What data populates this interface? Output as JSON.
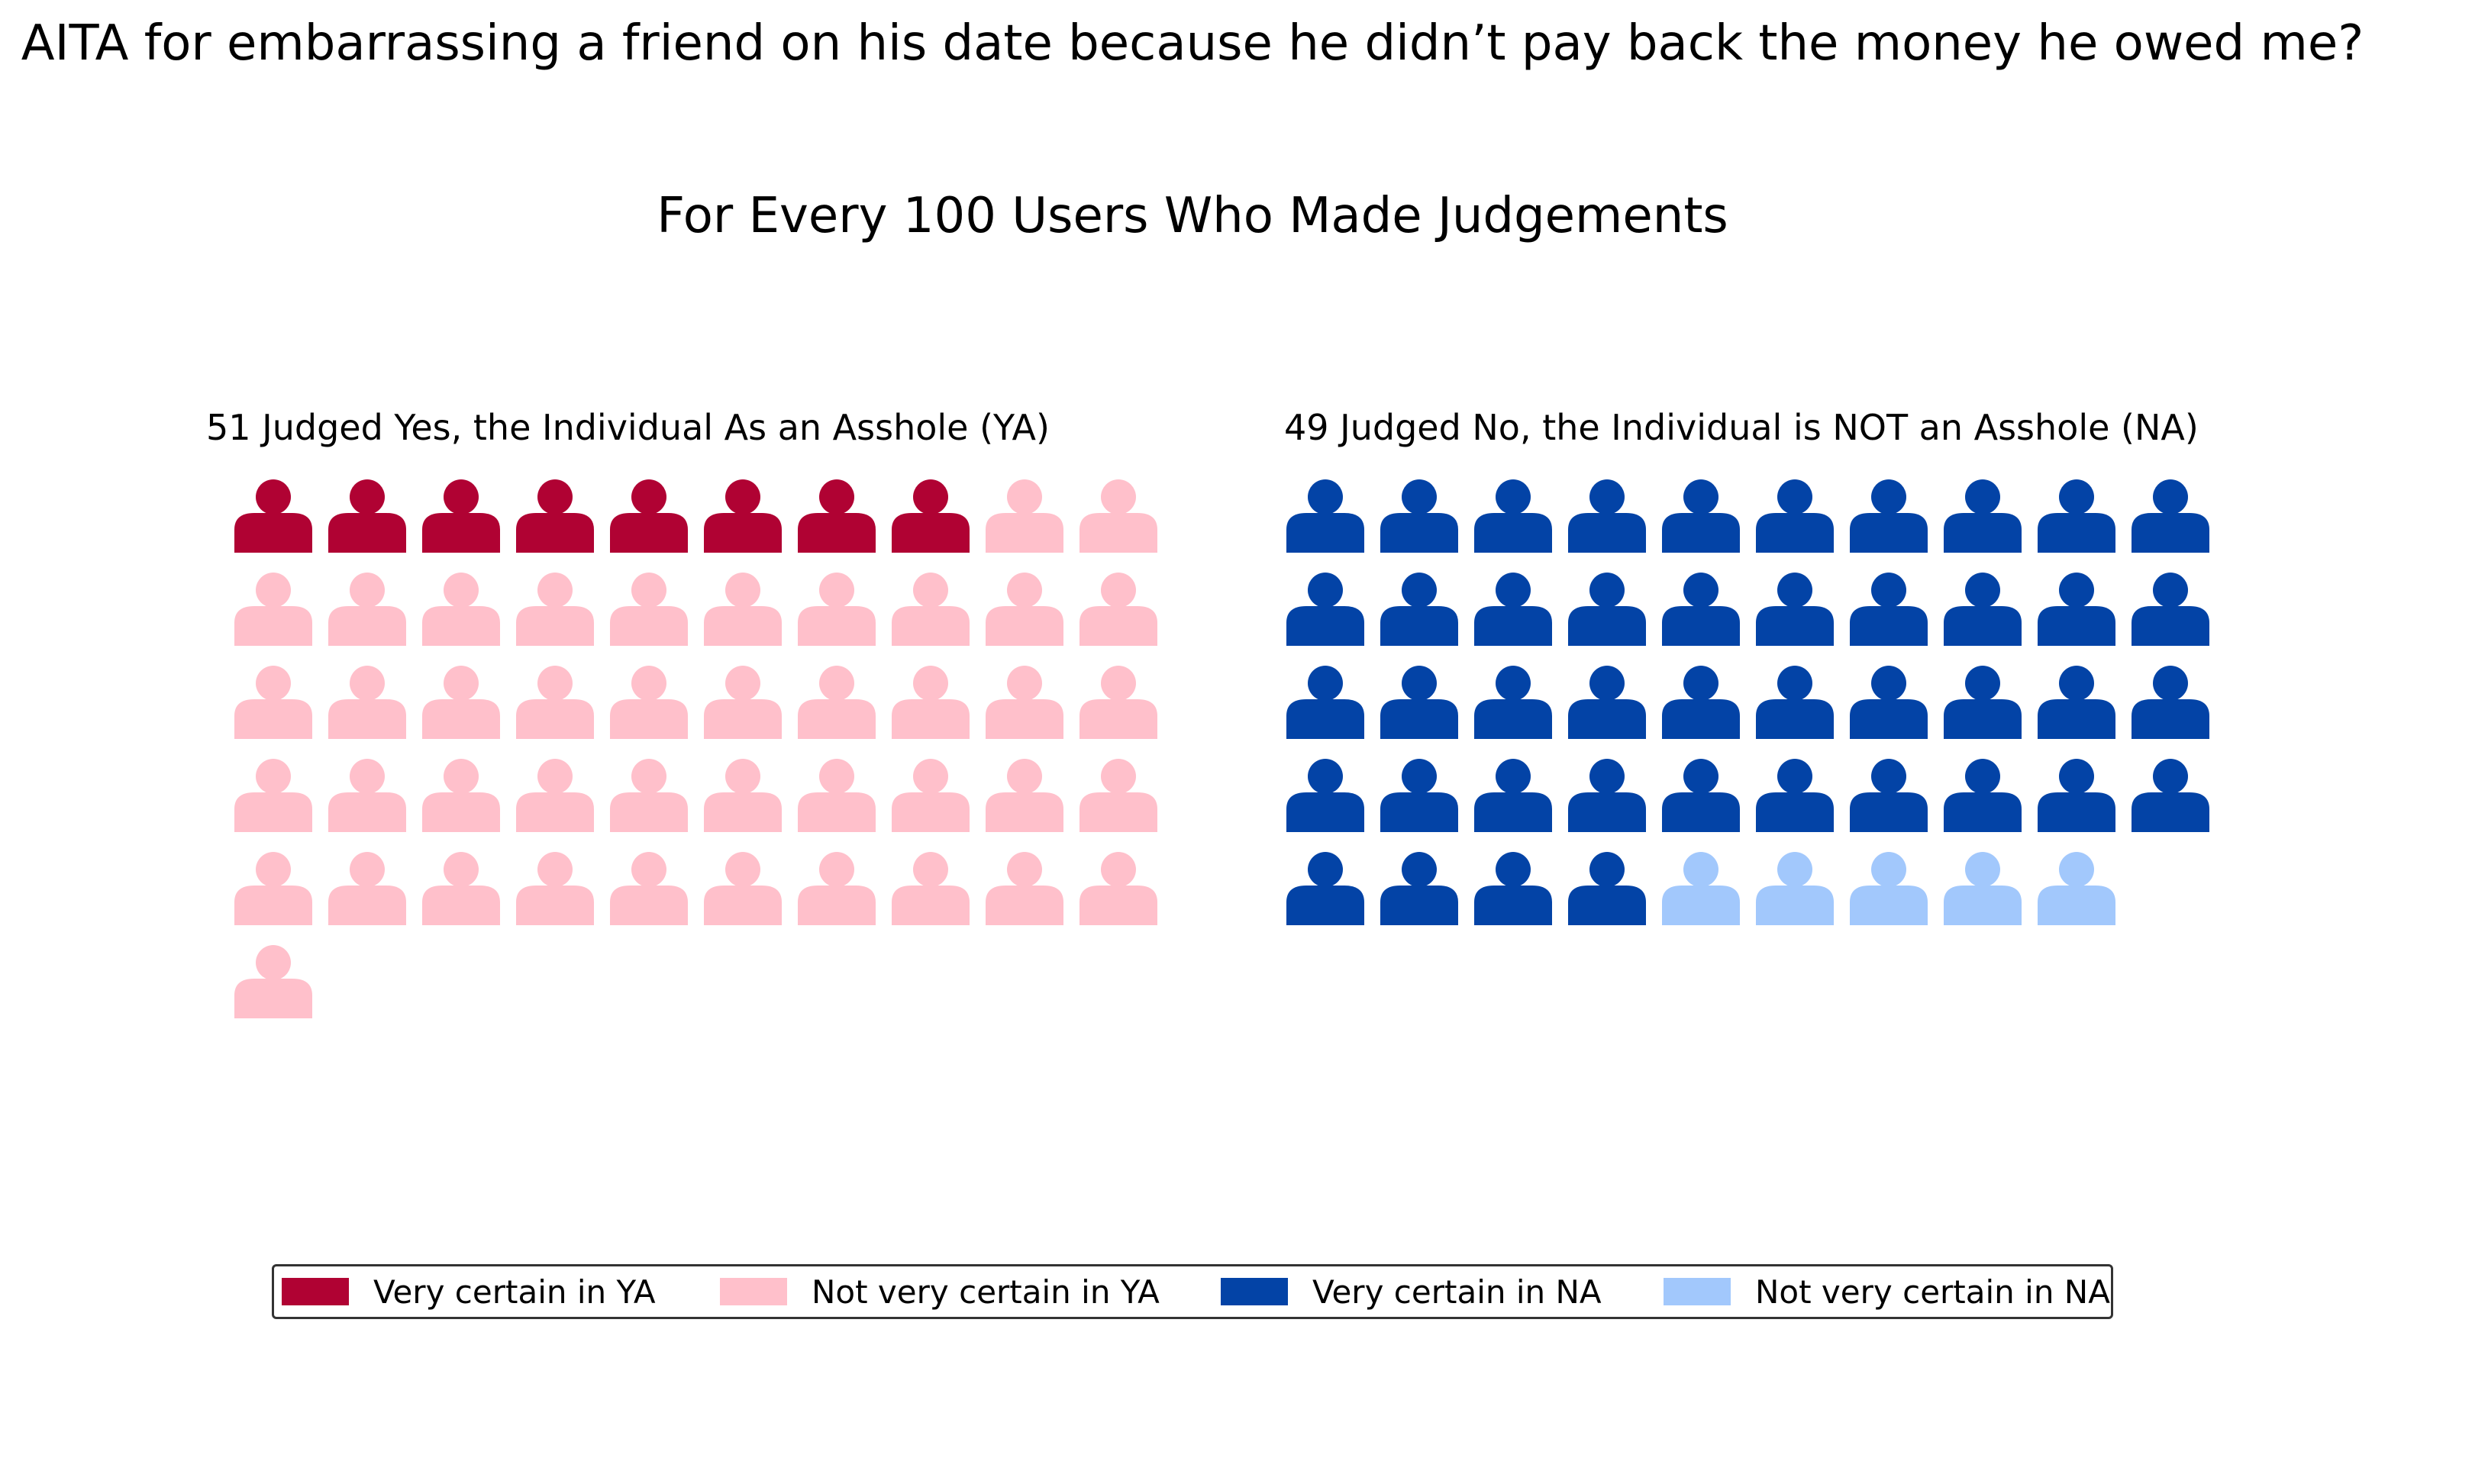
{
  "chart_data": {
    "type": "waffle",
    "title": "AITA for embarrassing a friend on his date because he didn’t pay back the money he owed me?",
    "subtitle": "For Every 100 Users Who Made Judgements",
    "panels": [
      {
        "id": "ya",
        "title": "51 Judged Yes, the Individual As an Asshole (YA)",
        "total": 51,
        "segments": [
          {
            "name": "Very certain in YA",
            "count": 8,
            "color": "#b00233"
          },
          {
            "name": "Not very certain in YA",
            "count": 43,
            "color": "#ffc0cb"
          }
        ]
      },
      {
        "id": "na",
        "title": "49 Judged No, the Individual is NOT an Asshole (NA)",
        "total": 49,
        "segments": [
          {
            "name": "Very certain in NA",
            "count": 44,
            "color": "#0343a6"
          },
          {
            "name": "Not very certain in NA",
            "count": 5,
            "color": "#a2c8fc"
          }
        ]
      }
    ],
    "columns": 10,
    "icon": "person-icon",
    "legend": {
      "placement": "bottom-center",
      "entries": [
        {
          "label": "Very certain in YA",
          "color": "#b00233"
        },
        {
          "label": "Not very certain in YA",
          "color": "#ffc0cb"
        },
        {
          "label": "Very certain in NA",
          "color": "#0343a6"
        },
        {
          "label": "Not very certain in NA",
          "color": "#a2c8fc"
        }
      ]
    }
  }
}
